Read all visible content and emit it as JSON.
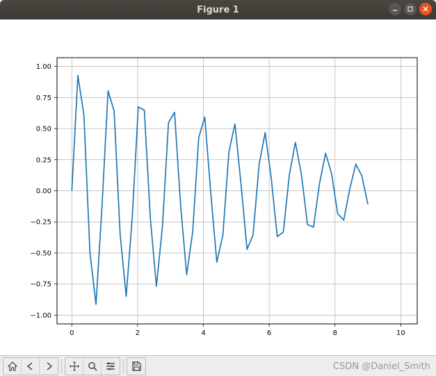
{
  "window": {
    "title": "Figure 1"
  },
  "chart": {
    "type": "line",
    "background_color": "#ffffff",
    "axes_facecolor": "#ffffff",
    "spine_color": "#000000",
    "grid_color": "#b0b0b0",
    "grid_linewidth": 0.7,
    "line_color": "#1f77b4",
    "line_width": 1.7,
    "tick_fontsize": 10,
    "tick_color": "#000000",
    "xlim": [
      -0.45,
      10.5
    ],
    "ylim": [
      -1.07,
      1.07
    ],
    "xticks": [
      0,
      2,
      4,
      6,
      8,
      10
    ],
    "yticks": [
      -1.0,
      -0.75,
      -0.5,
      -0.25,
      0.0,
      0.25,
      0.5,
      0.75,
      1.0
    ],
    "ytick_labels": [
      "−1.00",
      "−0.75",
      "−0.50",
      "−0.25",
      "0.00",
      "0.25",
      "0.50",
      "0.75",
      "1.00"
    ],
    "xtick_labels": [
      "0",
      "2",
      "4",
      "6",
      "8",
      "10"
    ],
    "n_points": 50,
    "x_min": 0,
    "x_max": 9,
    "amp_start": 1.0,
    "amp_decay": 0.09,
    "freq": 6.7
  },
  "toolbar": {
    "home": "home-icon",
    "back": "back-icon",
    "forward": "forward-icon",
    "pan": "pan-icon",
    "zoom": "zoom-icon",
    "configure": "configure-icon",
    "save": "save-icon"
  },
  "watermark": "CSDN @Daniel_Smith"
}
